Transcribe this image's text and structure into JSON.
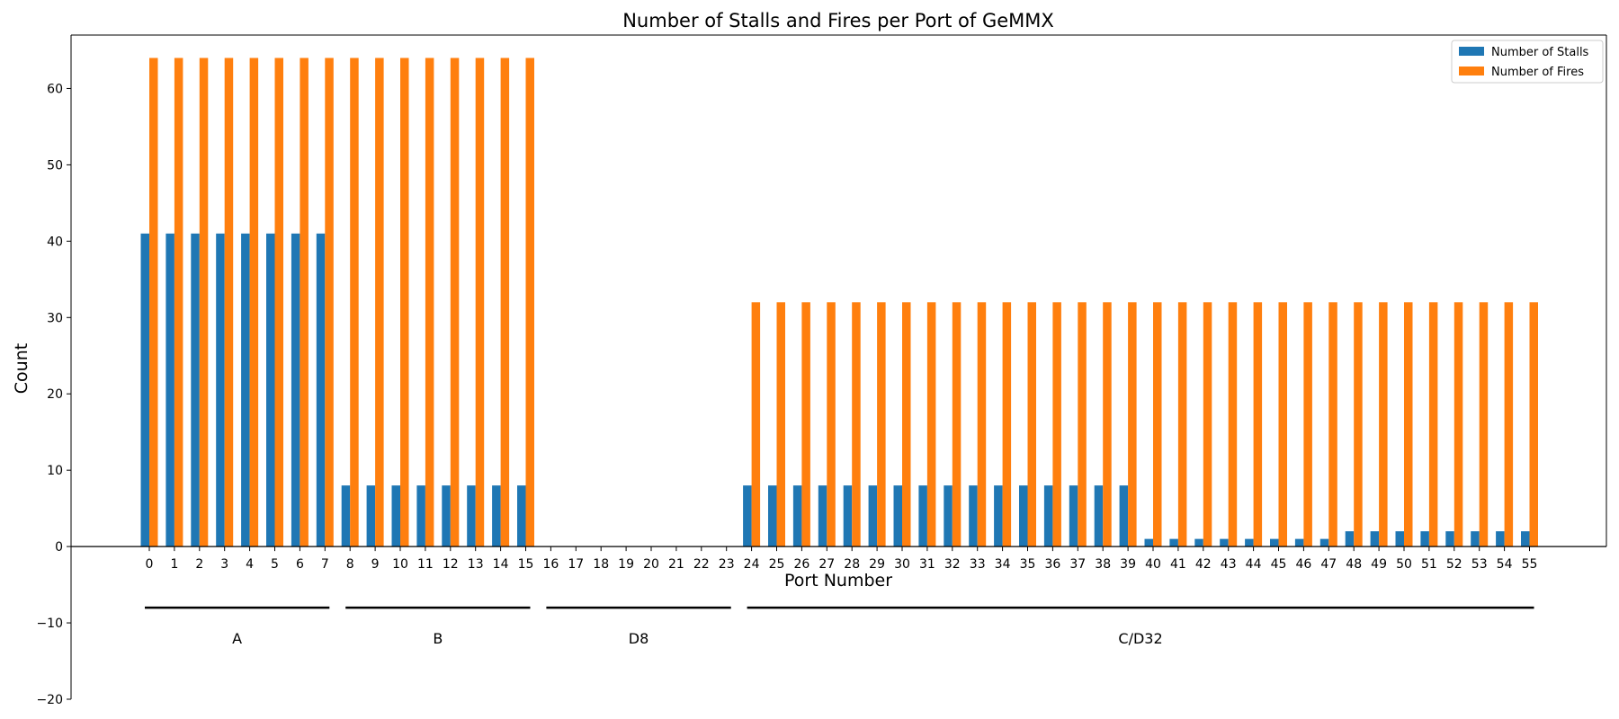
{
  "chart_data": {
    "type": "bar",
    "title": "Number of Stalls and Fires per Port of GeMMX",
    "xlabel": "Port Number",
    "ylabel": "Count",
    "ylim": [
      -20,
      67
    ],
    "yticks": [
      -20,
      -10,
      0,
      10,
      20,
      30,
      40,
      50,
      60
    ],
    "grid": false,
    "legend_position": "top-right",
    "categories": [
      "0",
      "1",
      "2",
      "3",
      "4",
      "5",
      "6",
      "7",
      "8",
      "9",
      "10",
      "11",
      "12",
      "13",
      "14",
      "15",
      "16",
      "17",
      "18",
      "19",
      "20",
      "21",
      "22",
      "23",
      "24",
      "25",
      "26",
      "27",
      "28",
      "29",
      "30",
      "31",
      "32",
      "33",
      "34",
      "35",
      "36",
      "37",
      "38",
      "39",
      "40",
      "41",
      "42",
      "43",
      "44",
      "45",
      "46",
      "47",
      "48",
      "49",
      "50",
      "51",
      "52",
      "53",
      "54",
      "55"
    ],
    "series": [
      {
        "name": "Number of Stalls",
        "color": "#1f77b4",
        "values": [
          41,
          41,
          41,
          41,
          41,
          41,
          41,
          41,
          8,
          8,
          8,
          8,
          8,
          8,
          8,
          8,
          0,
          0,
          0,
          0,
          0,
          0,
          0,
          0,
          8,
          8,
          8,
          8,
          8,
          8,
          8,
          8,
          8,
          8,
          8,
          8,
          8,
          8,
          8,
          8,
          1,
          1,
          1,
          1,
          1,
          1,
          1,
          1,
          2,
          2,
          2,
          2,
          2,
          2,
          2,
          2
        ]
      },
      {
        "name": "Number of Fires",
        "color": "#ff7f0e",
        "values": [
          64,
          64,
          64,
          64,
          64,
          64,
          64,
          64,
          64,
          64,
          64,
          64,
          64,
          64,
          64,
          64,
          0,
          0,
          0,
          0,
          0,
          0,
          0,
          0,
          32,
          32,
          32,
          32,
          32,
          32,
          32,
          32,
          32,
          32,
          32,
          32,
          32,
          32,
          32,
          32,
          32,
          32,
          32,
          32,
          32,
          32,
          32,
          32,
          32,
          32,
          32,
          32,
          32,
          32,
          32,
          32
        ]
      }
    ],
    "annotations": [
      {
        "label": "A",
        "start": 0,
        "end": 7
      },
      {
        "label": "B",
        "start": 8,
        "end": 15
      },
      {
        "label": "D8",
        "start": 16,
        "end": 23
      },
      {
        "label": "C/D32",
        "start": 24,
        "end": 55
      }
    ]
  }
}
